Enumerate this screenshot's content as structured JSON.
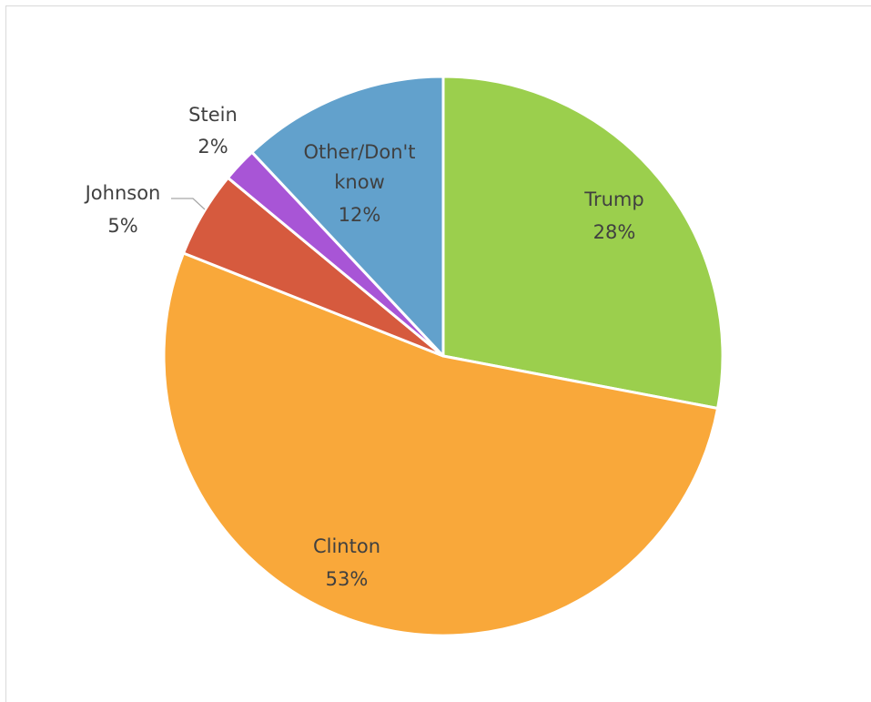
{
  "chart_data": {
    "type": "pie",
    "title": "",
    "start_angle_deg": 0,
    "direction": "clockwise",
    "slices": [
      {
        "label": "Trump",
        "value": 28,
        "value_label": "28%",
        "color": "#9bcf4d"
      },
      {
        "label": "Clinton",
        "value": 53,
        "value_label": "53%",
        "color": "#f9a83a"
      },
      {
        "label": "Johnson",
        "value": 5,
        "value_label": "5%",
        "color": "#d65a3e"
      },
      {
        "label": "Stein",
        "value": 2,
        "value_label": "2%",
        "color": "#a855d6"
      },
      {
        "label": "Other/Don't know",
        "value": 12,
        "value_label": "12%",
        "color": "#62a1cc"
      }
    ],
    "legend": "none",
    "data_labels": "category and percentage"
  }
}
